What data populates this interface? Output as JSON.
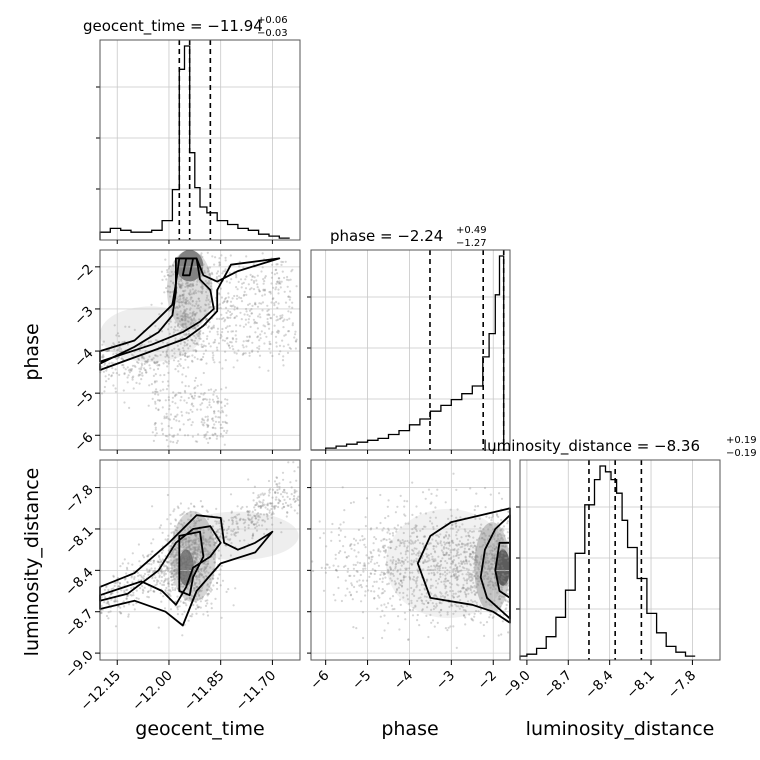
{
  "chart_data": {
    "type": "corner",
    "params": [
      "geocent_time",
      "phase",
      "luminosity_distance"
    ],
    "titles": [
      {
        "text": "geocent_time = −11.94",
        "sup": "+0.06",
        "sub": "−0.03"
      },
      {
        "text": "phase = −2.24",
        "sup": "+0.49",
        "sub": "−1.27"
      },
      {
        "text": "luminosity_distance = −8.36",
        "sup": "+0.19",
        "sub": "−0.19"
      }
    ],
    "ranges": {
      "geocent_time": [
        -12.2,
        -11.62
      ],
      "phase": [
        -6.35,
        -1.6
      ],
      "luminosity_distance": [
        -9.05,
        -7.6
      ]
    },
    "ticks": {
      "geocent_time": {
        "values": [
          -12.15,
          -12.0,
          -11.85,
          -11.7
        ],
        "labels": [
          "−12.15",
          "−12.00",
          "−11.85",
          "−11.70"
        ]
      },
      "phase": {
        "values": [
          -6,
          -5,
          -4,
          -3,
          -2
        ],
        "labels": [
          "−6",
          "−5",
          "−4",
          "−3",
          "−2"
        ]
      },
      "luminosity_distance": {
        "values": [
          -9.0,
          -8.7,
          -8.4,
          -8.1,
          -7.8
        ],
        "labels": [
          "−9.0",
          "−8.7",
          "−8.4",
          "−8.1",
          "−7.8"
        ]
      }
    },
    "quantiles": {
      "geocent_time": [
        -11.97,
        -11.94,
        -11.88
      ],
      "phase": [
        -3.51,
        -2.24,
        -1.75
      ],
      "luminosity_distance": [
        -8.55,
        -8.36,
        -8.17
      ]
    },
    "hist_geocent_time": {
      "bin_edges": [
        -12.2,
        -12.17,
        -12.14,
        -12.11,
        -12.08,
        -12.05,
        -12.02,
        -11.99,
        -11.97,
        -11.955,
        -11.94,
        -11.925,
        -11.91,
        -11.89,
        -11.86,
        -11.83,
        -11.8,
        -11.77,
        -11.74,
        -11.71,
        -11.68,
        -11.65
      ],
      "counts": [
        0.04,
        0.06,
        0.05,
        0.04,
        0.04,
        0.05,
        0.1,
        0.26,
        0.88,
        1.0,
        0.45,
        0.27,
        0.17,
        0.14,
        0.1,
        0.08,
        0.06,
        0.05,
        0.03,
        0.02,
        0.01
      ]
    },
    "hist_phase": {
      "bin_edges": [
        -6.35,
        -6.0,
        -5.75,
        -5.5,
        -5.25,
        -5.0,
        -4.75,
        -4.5,
        -4.25,
        -4.0,
        -3.75,
        -3.5,
        -3.25,
        -3.0,
        -2.75,
        -2.5,
        -2.25,
        -2.1,
        -1.95,
        -1.85,
        -1.75,
        -1.6
      ],
      "counts": [
        0.0,
        0.01,
        0.02,
        0.03,
        0.04,
        0.05,
        0.06,
        0.08,
        0.1,
        0.13,
        0.16,
        0.2,
        0.23,
        0.26,
        0.29,
        0.33,
        0.48,
        0.6,
        0.8,
        1.0,
        0.0
      ]
    },
    "hist_luminosity_distance": {
      "bin_edges": [
        -9.05,
        -9.0,
        -8.93,
        -8.86,
        -8.79,
        -8.72,
        -8.65,
        -8.58,
        -8.51,
        -8.47,
        -8.43,
        -8.39,
        -8.35,
        -8.31,
        -8.27,
        -8.2,
        -8.13,
        -8.06,
        -7.99,
        -7.92,
        -7.85,
        -7.78
      ],
      "counts": [
        0.02,
        0.03,
        0.06,
        0.12,
        0.22,
        0.36,
        0.55,
        0.8,
        0.93,
        1.0,
        0.97,
        0.93,
        0.86,
        0.72,
        0.58,
        0.42,
        0.24,
        0.14,
        0.07,
        0.04,
        0.02
      ]
    },
    "contours_time_phase": [
      [
        [
          -12.2,
          -4.0
        ],
        [
          -12.1,
          -3.75
        ],
        [
          -12.04,
          -3.3
        ],
        [
          -11.99,
          -2.9
        ],
        [
          -11.98,
          -2.4
        ],
        [
          -11.97,
          -1.8
        ],
        [
          -11.92,
          -1.8
        ],
        [
          -11.91,
          -2.3
        ],
        [
          -11.88,
          -2.55
        ],
        [
          -11.87,
          -3.0
        ],
        [
          -11.91,
          -3.3
        ],
        [
          -11.96,
          -3.55
        ],
        [
          -12.05,
          -3.85
        ],
        [
          -12.2,
          -4.25
        ]
      ],
      [
        [
          -12.2,
          -4.3
        ],
        [
          -12.1,
          -3.9
        ],
        [
          -12.03,
          -3.55
        ],
        [
          -11.99,
          -3.15
        ],
        [
          -11.98,
          -2.6
        ],
        [
          -11.98,
          -1.8
        ],
        [
          -11.92,
          -1.8
        ],
        [
          -11.9,
          -2.2
        ],
        [
          -11.86,
          -2.35
        ],
        [
          -11.8,
          -2.1
        ],
        [
          -11.72,
          -1.9
        ],
        [
          -11.68,
          -1.8
        ],
        [
          -11.82,
          -1.95
        ],
        [
          -11.86,
          -2.55
        ],
        [
          -11.86,
          -3.05
        ],
        [
          -11.9,
          -3.4
        ],
        [
          -11.95,
          -3.7
        ],
        [
          -12.05,
          -4.0
        ],
        [
          -12.2,
          -4.45
        ]
      ],
      [
        [
          -11.96,
          -2.2
        ],
        [
          -11.95,
          -1.8
        ],
        [
          -11.93,
          -1.8
        ],
        [
          -11.94,
          -2.2
        ]
      ]
    ],
    "contours_time_distance": [
      [
        [
          -12.2,
          -8.62
        ],
        [
          -12.12,
          -8.57
        ],
        [
          -12.03,
          -8.4
        ],
        [
          -11.98,
          -8.2
        ],
        [
          -11.93,
          -8.1
        ],
        [
          -11.88,
          -8.08
        ],
        [
          -11.85,
          -8.2
        ],
        [
          -11.88,
          -8.3
        ],
        [
          -11.93,
          -8.38
        ],
        [
          -11.95,
          -8.52
        ],
        [
          -11.98,
          -8.65
        ],
        [
          -12.02,
          -8.55
        ],
        [
          -12.08,
          -8.48
        ],
        [
          -12.2,
          -8.58
        ]
      ],
      [
        [
          -11.97,
          -8.55
        ],
        [
          -11.97,
          -8.15
        ],
        [
          -11.91,
          -8.12
        ],
        [
          -11.9,
          -8.3
        ],
        [
          -11.93,
          -8.45
        ],
        [
          -11.94,
          -8.58
        ]
      ],
      [
        [
          -12.2,
          -8.52
        ],
        [
          -12.1,
          -8.42
        ],
        [
          -12.0,
          -8.2
        ],
        [
          -11.92,
          -8.0
        ],
        [
          -11.85,
          -8.02
        ],
        [
          -11.84,
          -8.2
        ],
        [
          -11.8,
          -8.25
        ],
        [
          -11.75,
          -8.2
        ],
        [
          -11.7,
          -8.12
        ],
        [
          -11.75,
          -8.27
        ],
        [
          -11.85,
          -8.35
        ],
        [
          -11.92,
          -8.55
        ],
        [
          -11.96,
          -8.8
        ],
        [
          -12.01,
          -8.7
        ],
        [
          -12.1,
          -8.62
        ],
        [
          -12.2,
          -8.68
        ]
      ]
    ],
    "contours_phase_distance": [
      [
        [
          -1.6,
          -8.0
        ],
        [
          -1.95,
          -8.1
        ],
        [
          -2.2,
          -8.25
        ],
        [
          -2.3,
          -8.45
        ],
        [
          -2.15,
          -8.6
        ],
        [
          -1.6,
          -8.75
        ]
      ],
      [
        [
          -1.6,
          -7.95
        ],
        [
          -2.3,
          -8.0
        ],
        [
          -3.0,
          -8.05
        ],
        [
          -3.5,
          -8.15
        ],
        [
          -3.8,
          -8.35
        ],
        [
          -3.5,
          -8.6
        ],
        [
          -2.5,
          -8.65
        ],
        [
          -2.0,
          -8.7
        ],
        [
          -1.6,
          -8.78
        ]
      ],
      [
        [
          -1.6,
          -8.2
        ],
        [
          -1.85,
          -8.2
        ],
        [
          -1.95,
          -8.4
        ],
        [
          -1.85,
          -8.55
        ],
        [
          -1.6,
          -8.6
        ]
      ]
    ],
    "grid": true,
    "legend": "none"
  }
}
